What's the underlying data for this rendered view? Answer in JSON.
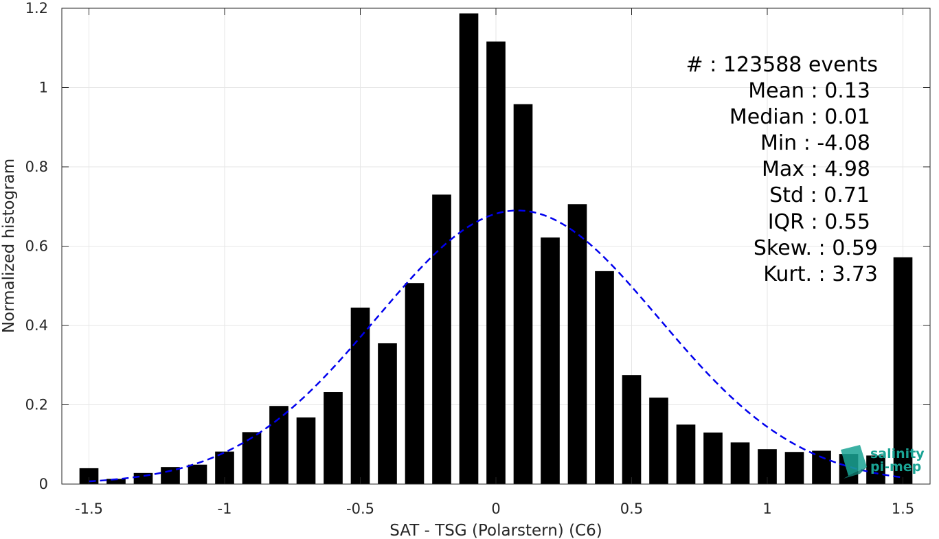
{
  "chart_data": {
    "type": "bar",
    "xlabel": "SAT - TSG (Polarstern) (C6)",
    "ylabel": "Normalized histogram",
    "xlim": [
      -1.6,
      1.6
    ],
    "ylim": [
      0,
      1.2
    ],
    "x_ticks": [
      -1.5,
      -1,
      -0.5,
      0,
      0.5,
      1,
      1.5
    ],
    "x_tick_labels": [
      "-1.5",
      "-1",
      "-0.5",
      "0",
      "0.5",
      "1",
      "1.5"
    ],
    "y_ticks": [
      0,
      0.2,
      0.4,
      0.6,
      0.8,
      1,
      1.2
    ],
    "y_tick_labels": [
      "0",
      "0.2",
      "0.4",
      "0.6",
      "0.8",
      "1",
      "1.2"
    ],
    "grid": true,
    "bar_color": "#000000",
    "bar_width": 0.07,
    "x": [
      -1.5,
      -1.4,
      -1.3,
      -1.2,
      -1.1,
      -1.0,
      -0.9,
      -0.8,
      -0.7,
      -0.6,
      -0.5,
      -0.4,
      -0.3,
      -0.2,
      -0.1,
      0.0,
      0.1,
      0.2,
      0.3,
      0.4,
      0.5,
      0.6,
      0.7,
      0.8,
      0.9,
      1.0,
      1.1,
      1.2,
      1.3,
      1.4,
      1.5
    ],
    "values": [
      0.04,
      0.013,
      0.028,
      0.043,
      0.049,
      0.082,
      0.131,
      0.197,
      0.168,
      0.232,
      0.445,
      0.355,
      0.507,
      0.73,
      1.187,
      1.116,
      0.958,
      0.622,
      0.706,
      0.537,
      0.275,
      0.218,
      0.15,
      0.13,
      0.105,
      0.088,
      0.081,
      0.084,
      0.076,
      0.072,
      0.572
    ],
    "fit_curve": {
      "type": "gaussian",
      "style": "dashed",
      "color": "#0000ee",
      "mean": 0.08,
      "peak": 0.69,
      "sigma": 0.52,
      "x_range": [
        -1.5,
        1.5
      ]
    },
    "annotations": [
      "#  : 123588 events",
      "Mean : 0.13",
      "Median : 0.01",
      "Min : -4.08",
      "Max : 4.98",
      "Std : 0.71",
      "IQR : 0.55",
      "Skew. : 0.59",
      "Kurt. : 3.73"
    ]
  },
  "logo": {
    "line1": "salinity",
    "line2": "pi-mep",
    "color": "#1aa394"
  }
}
